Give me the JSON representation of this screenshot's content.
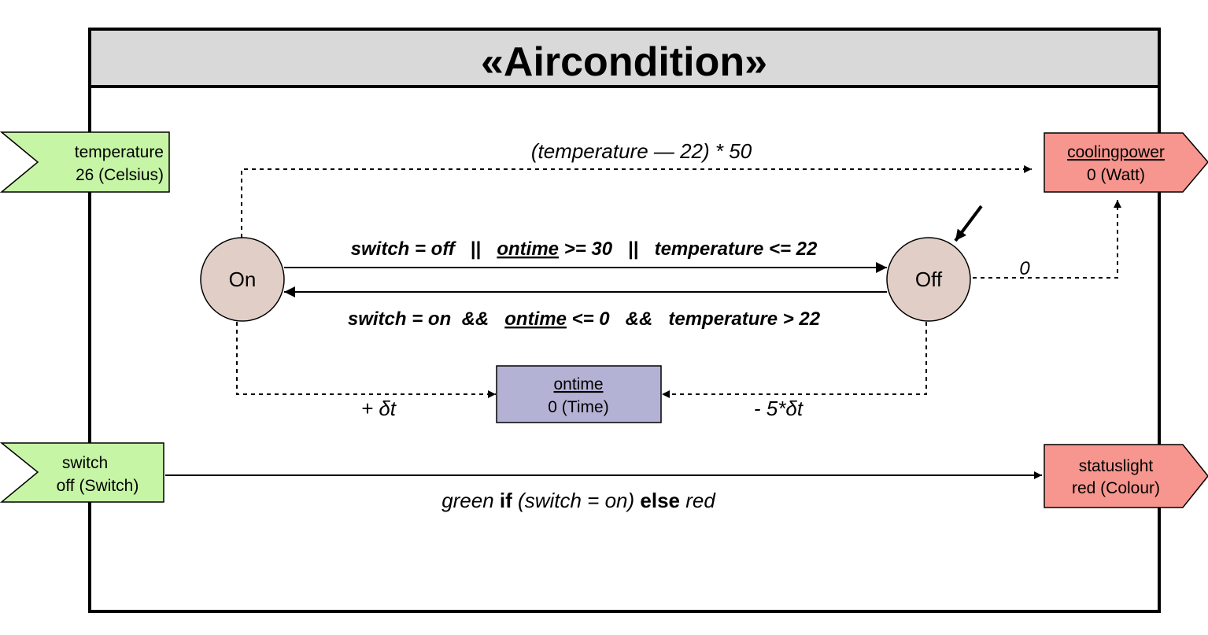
{
  "block": {
    "title": "«Aircondition»",
    "header_fill": "#d9d9d9"
  },
  "inputs": {
    "temperature": {
      "name": "temperature",
      "value": "26 (Celsius)",
      "fill": "#c6f5a6"
    },
    "switch": {
      "name": "switch",
      "value": "off (Switch)",
      "fill": "#c6f5a6"
    }
  },
  "outputs": {
    "coolingpower": {
      "name": "coolingpower",
      "value": "0 (Watt)",
      "fill": "#f7968e"
    },
    "statuslight": {
      "name": "statuslight",
      "value": "red (Colour)",
      "fill": "#f7968e"
    }
  },
  "states": {
    "on": {
      "label": "On",
      "fill": "#e1cfc7"
    },
    "off": {
      "label": "Off",
      "fill": "#e1cfc7"
    }
  },
  "variable": {
    "ontime": {
      "name": "ontime",
      "value": "0 (Time)",
      "fill": "#b4b2d4"
    }
  },
  "transitions": {
    "on_to_off": {
      "part1": "switch = off",
      "sep1": "||",
      "part2_word": "ontime",
      "part2_rest": ">= 30",
      "sep2": "||",
      "part3": "temperature <= 22"
    },
    "off_to_on": {
      "part1": "switch = on",
      "sep1": "&&",
      "part2_word": "ontime",
      "part2_rest": "<= 0",
      "sep2": "&&",
      "part3": "temperature > 22"
    }
  },
  "flows": {
    "on_cooling": "(temperature — 22) *  50",
    "off_cooling": "0",
    "on_ontime": "+ δt",
    "off_ontime": "- 5*δt",
    "status": {
      "w1": "green",
      "w2": "if",
      "w3": "(switch = on)",
      "w4": "else",
      "w5": "red"
    }
  }
}
